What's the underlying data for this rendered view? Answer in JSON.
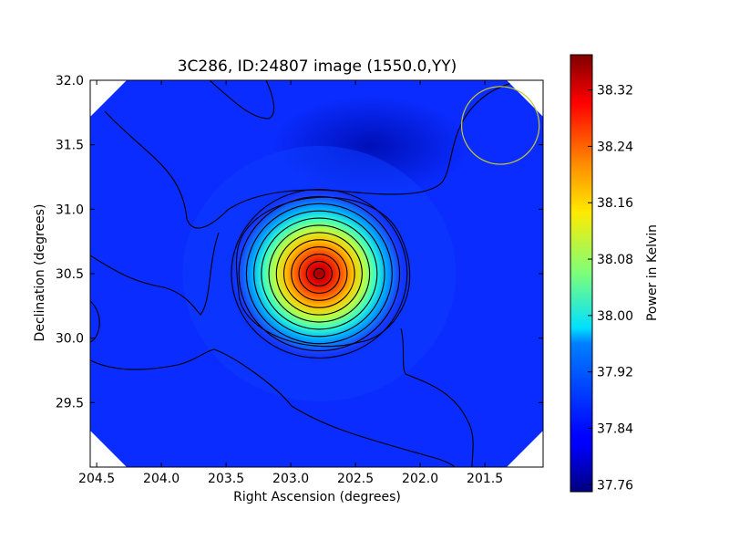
{
  "chart_data": {
    "type": "heatmap",
    "title": "3C286, ID:24807 image (1550.0,YY)",
    "xlabel": "Right Ascension (degrees)",
    "ylabel": "Declination (degrees)",
    "xlim": [
      204.55,
      201.05
    ],
    "ylim": [
      29.0,
      32.0
    ],
    "x_ticks": [
      204.5,
      204.0,
      203.5,
      203.0,
      202.5,
      202.0,
      201.5
    ],
    "x_tick_labels": [
      "204.5",
      "204.0",
      "203.5",
      "203.0",
      "202.5",
      "202.0",
      "201.5"
    ],
    "y_ticks": [
      29.5,
      30.0,
      30.5,
      31.0,
      31.5,
      32.0
    ],
    "y_tick_labels": [
      "29.5",
      "30.0",
      "30.5",
      "31.0",
      "31.5",
      "32.0"
    ],
    "colorbar": {
      "label": "Power in Kelvin",
      "range": [
        37.75,
        38.37
      ],
      "ticks": [
        37.76,
        37.84,
        37.92,
        38.0,
        38.08,
        38.16,
        38.24,
        38.32
      ],
      "tick_labels": [
        "37.76",
        "37.84",
        "37.92",
        "38.00",
        "38.08",
        "38.16",
        "38.24",
        "38.32"
      ],
      "colormap": "jet"
    },
    "source_peak": {
      "ra": 202.78,
      "dec": 30.5,
      "value": 38.36
    },
    "background_level": 37.83,
    "beam_marker": {
      "ra": 201.38,
      "dec": 31.65,
      "radius_deg": 0.3,
      "color": "#c8c832"
    },
    "contour_color": "#000000",
    "grid": false
  }
}
